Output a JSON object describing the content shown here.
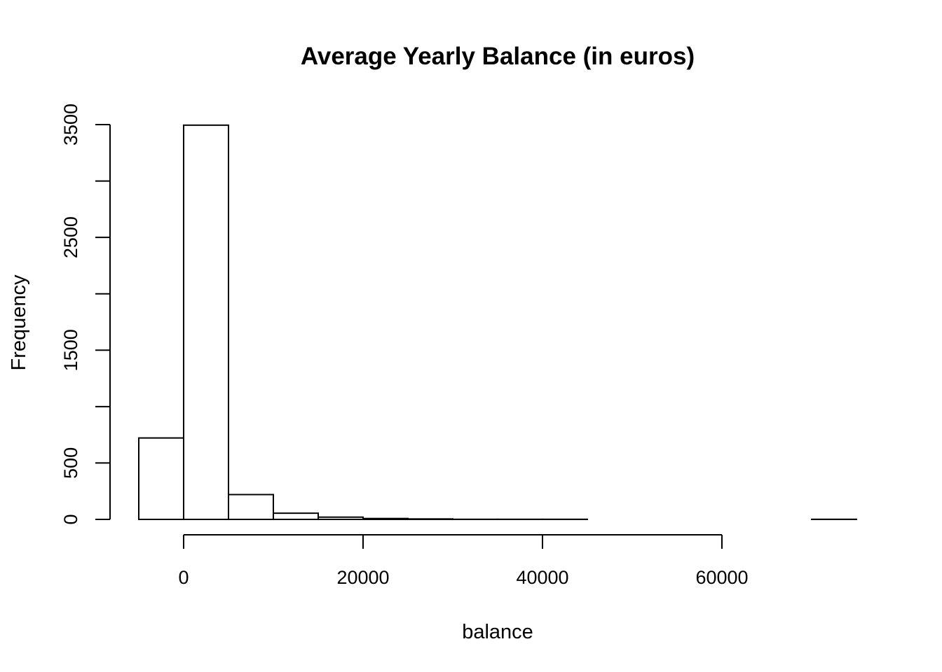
{
  "chart_data": {
    "type": "bar",
    "title": "Average Yearly Balance (in euros)",
    "xlabel": "balance",
    "ylabel": "Frequency",
    "x_ticks": [
      0,
      20000,
      40000,
      60000
    ],
    "x_tick_labels": [
      "0",
      "20000",
      "40000",
      "60000"
    ],
    "y_ticks": [
      0,
      500,
      1000,
      1500,
      2000,
      2500,
      3000,
      3500
    ],
    "y_tick_labels": [
      "0",
      "500",
      "",
      "1500",
      "",
      "2500",
      "",
      "3500"
    ],
    "xlim": [
      0,
      60000
    ],
    "ylim": [
      0,
      3500
    ],
    "grid": false,
    "bins": [
      {
        "start": -5000,
        "end": 0,
        "count": 722
      },
      {
        "start": 0,
        "end": 5000,
        "count": 3495
      },
      {
        "start": 5000,
        "end": 10000,
        "count": 220
      },
      {
        "start": 10000,
        "end": 15000,
        "count": 55
      },
      {
        "start": 15000,
        "end": 20000,
        "count": 20
      },
      {
        "start": 20000,
        "end": 25000,
        "count": 8
      },
      {
        "start": 25000,
        "end": 30000,
        "count": 4
      },
      {
        "start": 30000,
        "end": 35000,
        "count": 1
      },
      {
        "start": 35000,
        "end": 40000,
        "count": 1
      },
      {
        "start": 40000,
        "end": 45000,
        "count": 1
      },
      {
        "start": 45000,
        "end": 50000,
        "count": 0
      },
      {
        "start": 50000,
        "end": 55000,
        "count": 0
      },
      {
        "start": 55000,
        "end": 60000,
        "count": 0
      },
      {
        "start": 60000,
        "end": 65000,
        "count": 0
      },
      {
        "start": 65000,
        "end": 70000,
        "count": 0
      },
      {
        "start": 70000,
        "end": 75000,
        "count": 1
      }
    ]
  }
}
